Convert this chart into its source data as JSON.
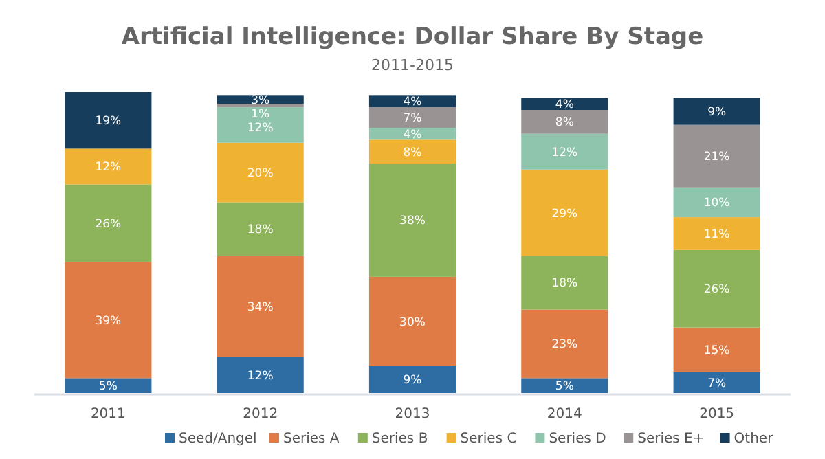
{
  "chart_data": {
    "type": "bar",
    "stacked": true,
    "title": "Artificial Intelligence: Dollar Share By Stage",
    "subtitle": "2011-2015",
    "categories": [
      "2011",
      "2012",
      "2013",
      "2014",
      "2015"
    ],
    "legend": "bottom",
    "grid": false,
    "series": [
      {
        "name": "Seed/Angel",
        "color": "#2e6da4",
        "values": [
          5,
          12,
          9,
          5,
          7
        ],
        "value_labels": [
          "5%",
          "12%",
          "9%",
          "5%",
          "7%"
        ]
      },
      {
        "name": "Series A",
        "color": "#e07b45",
        "values": [
          39,
          34,
          30,
          23,
          15
        ],
        "value_labels": [
          "39%",
          "34%",
          "30%",
          "23%",
          "15%"
        ]
      },
      {
        "name": "Series B",
        "color": "#8db45a",
        "values": [
          26,
          18,
          38,
          18,
          26
        ],
        "value_labels": [
          "26%",
          "18%",
          "38%",
          "18%",
          "26%"
        ]
      },
      {
        "name": "Series C",
        "color": "#f0b232",
        "values": [
          12,
          20,
          8,
          29,
          11
        ],
        "value_labels": [
          "12%",
          "20%",
          "8%",
          "29%",
          "11%"
        ]
      },
      {
        "name": "Series D",
        "color": "#8fc4ad",
        "values": [
          0,
          12,
          4,
          12,
          10
        ],
        "value_labels": [
          null,
          "12%",
          "4%",
          "12%",
          "10%"
        ]
      },
      {
        "name": "Series E+",
        "color": "#9a9393",
        "values": [
          0,
          1,
          7,
          8,
          21
        ],
        "value_labels": [
          null,
          "1%",
          "7%",
          "8%",
          "21%"
        ]
      },
      {
        "name": "Other",
        "color": "#163d5c",
        "values": [
          19,
          3,
          4,
          4,
          9
        ],
        "value_labels": [
          "19%",
          "3%",
          "4%",
          "4%",
          "9%"
        ]
      }
    ]
  }
}
